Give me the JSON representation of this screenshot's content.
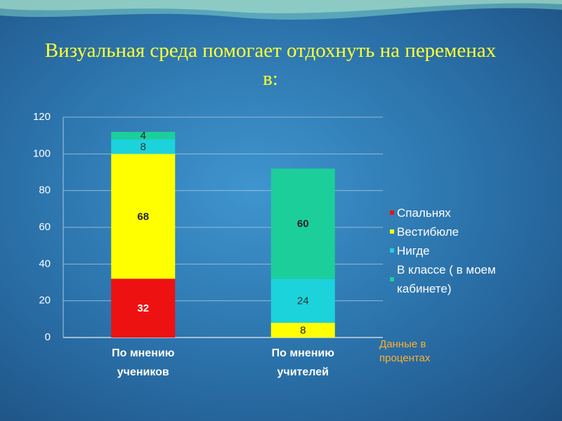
{
  "chart_data": {
    "type": "stacked_bar",
    "title": "Визуальная среда помогает отдохнуть на переменах в:",
    "categories": [
      "По мнению учеников",
      "По мнению учителей"
    ],
    "series": [
      {
        "name": "Спальнях",
        "color": "#ee1111",
        "label_color": "#ffffff",
        "values": [
          32,
          null
        ]
      },
      {
        "name": "Вестибюле",
        "color": "#ffff00",
        "label_color": "#222222",
        "values": [
          68,
          8
        ]
      },
      {
        "name": "Нигде",
        "color": "#1cd3dc",
        "label_color": "#333333",
        "values": [
          8,
          24
        ]
      },
      {
        "name": "В классе ( в моем кабинете)",
        "color": "#1ccf9a",
        "label_color": "#222222",
        "values": [
          4,
          60
        ]
      }
    ],
    "ylim": [
      0,
      120
    ],
    "yticks": [
      0,
      20,
      40,
      60,
      80,
      100,
      120
    ],
    "grid": true,
    "legend": "right",
    "annotation": "Данные в процентах"
  }
}
